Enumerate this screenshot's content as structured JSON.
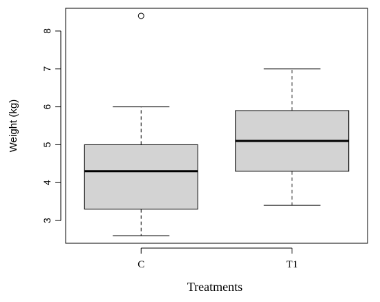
{
  "chart_data": {
    "type": "boxplot",
    "title": "",
    "xlabel": "Treatments",
    "ylabel": "Weight (kg)",
    "ylim": [
      2.4,
      8.6
    ],
    "yticks": [
      3,
      4,
      5,
      6,
      7,
      8
    ],
    "categories": [
      "C",
      "T1"
    ],
    "boxes": [
      {
        "category": "C",
        "whisker_low": 2.6,
        "q1": 3.3,
        "median": 4.3,
        "q3": 5.0,
        "whisker_high": 6.0,
        "outliers": [
          8.4
        ]
      },
      {
        "category": "T1",
        "whisker_low": 3.4,
        "q1": 4.3,
        "median": 5.1,
        "q3": 5.9,
        "whisker_high": 7.0,
        "outliers": []
      }
    ],
    "box_fill": "#d3d3d3",
    "grid": false
  }
}
